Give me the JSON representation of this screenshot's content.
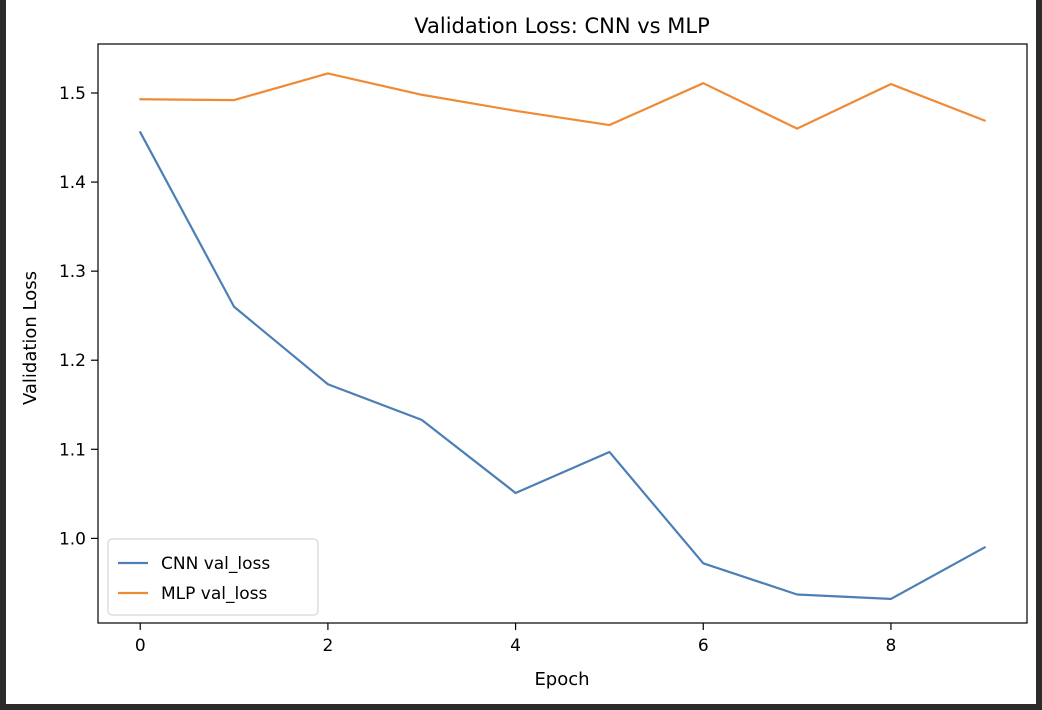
{
  "chart_data": {
    "type": "line",
    "title": "Validation Loss: CNN vs MLP",
    "xlabel": "Epoch",
    "ylabel": "Validation Loss",
    "x": [
      0,
      1,
      2,
      3,
      4,
      5,
      6,
      7,
      8,
      9
    ],
    "xticks": [
      "0",
      "2",
      "4",
      "6",
      "8"
    ],
    "yticks": [
      "1.0",
      "1.1",
      "1.2",
      "1.3",
      "1.4",
      "1.5"
    ],
    "xlim": [
      -0.45,
      9.45
    ],
    "ylim": [
      0.905,
      1.555
    ],
    "grid": false,
    "legend_position": "lower-left",
    "series": [
      {
        "name": "CNN val_loss",
        "color": "#4c7fb5",
        "values": [
          1.456,
          1.26,
          1.173,
          1.133,
          1.051,
          1.097,
          0.972,
          0.937,
          0.932,
          0.99
        ]
      },
      {
        "name": "MLP val_loss",
        "color": "#ef8a35",
        "values": [
          1.493,
          1.492,
          1.522,
          1.498,
          1.48,
          1.464,
          1.511,
          1.46,
          1.51,
          1.469
        ]
      }
    ]
  }
}
